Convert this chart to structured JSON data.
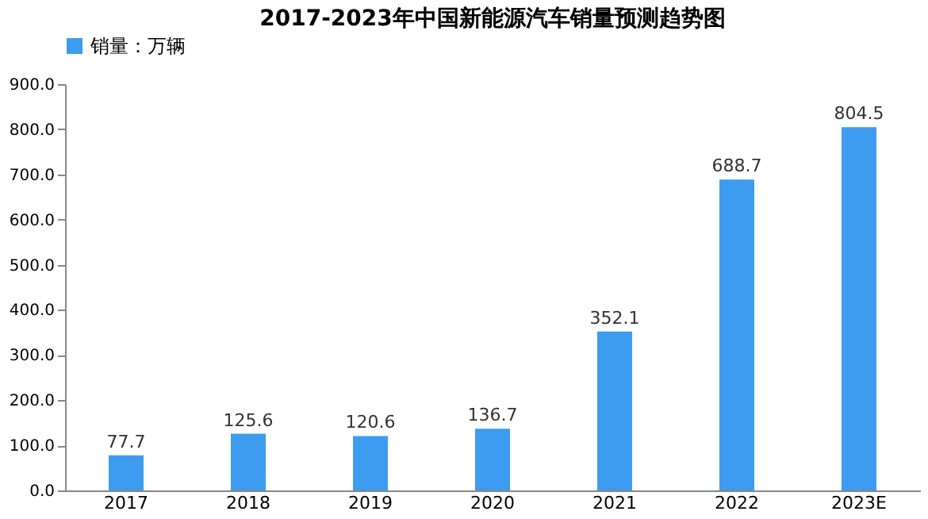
{
  "chart_data": {
    "type": "bar",
    "title": "2017-2023年中国新能源汽车销量预测趋势图",
    "categories": [
      "2017",
      "2018",
      "2019",
      "2020",
      "2021",
      "2022",
      "2023E"
    ],
    "series": [
      {
        "name": "销量：万辆",
        "color": "#3d9cf0",
        "values": [
          77.7,
          125.6,
          120.6,
          136.7,
          352.1,
          688.7,
          804.5
        ]
      }
    ],
    "ylim": [
      0,
      900
    ],
    "yticks": [
      {
        "value": 0,
        "label": "0.0"
      },
      {
        "value": 100,
        "label": "100.0"
      },
      {
        "value": 200,
        "label": "200.0"
      },
      {
        "value": 300,
        "label": "300.0"
      },
      {
        "value": 400,
        "label": "400.0"
      },
      {
        "value": 500,
        "label": "500.0"
      },
      {
        "value": 600,
        "label": "600.0"
      },
      {
        "value": 700,
        "label": "700.0"
      },
      {
        "value": 800,
        "label": "800.0"
      },
      {
        "value": 900,
        "label": "900.0"
      }
    ],
    "data_labels": true,
    "grid": false,
    "legend": "top"
  }
}
